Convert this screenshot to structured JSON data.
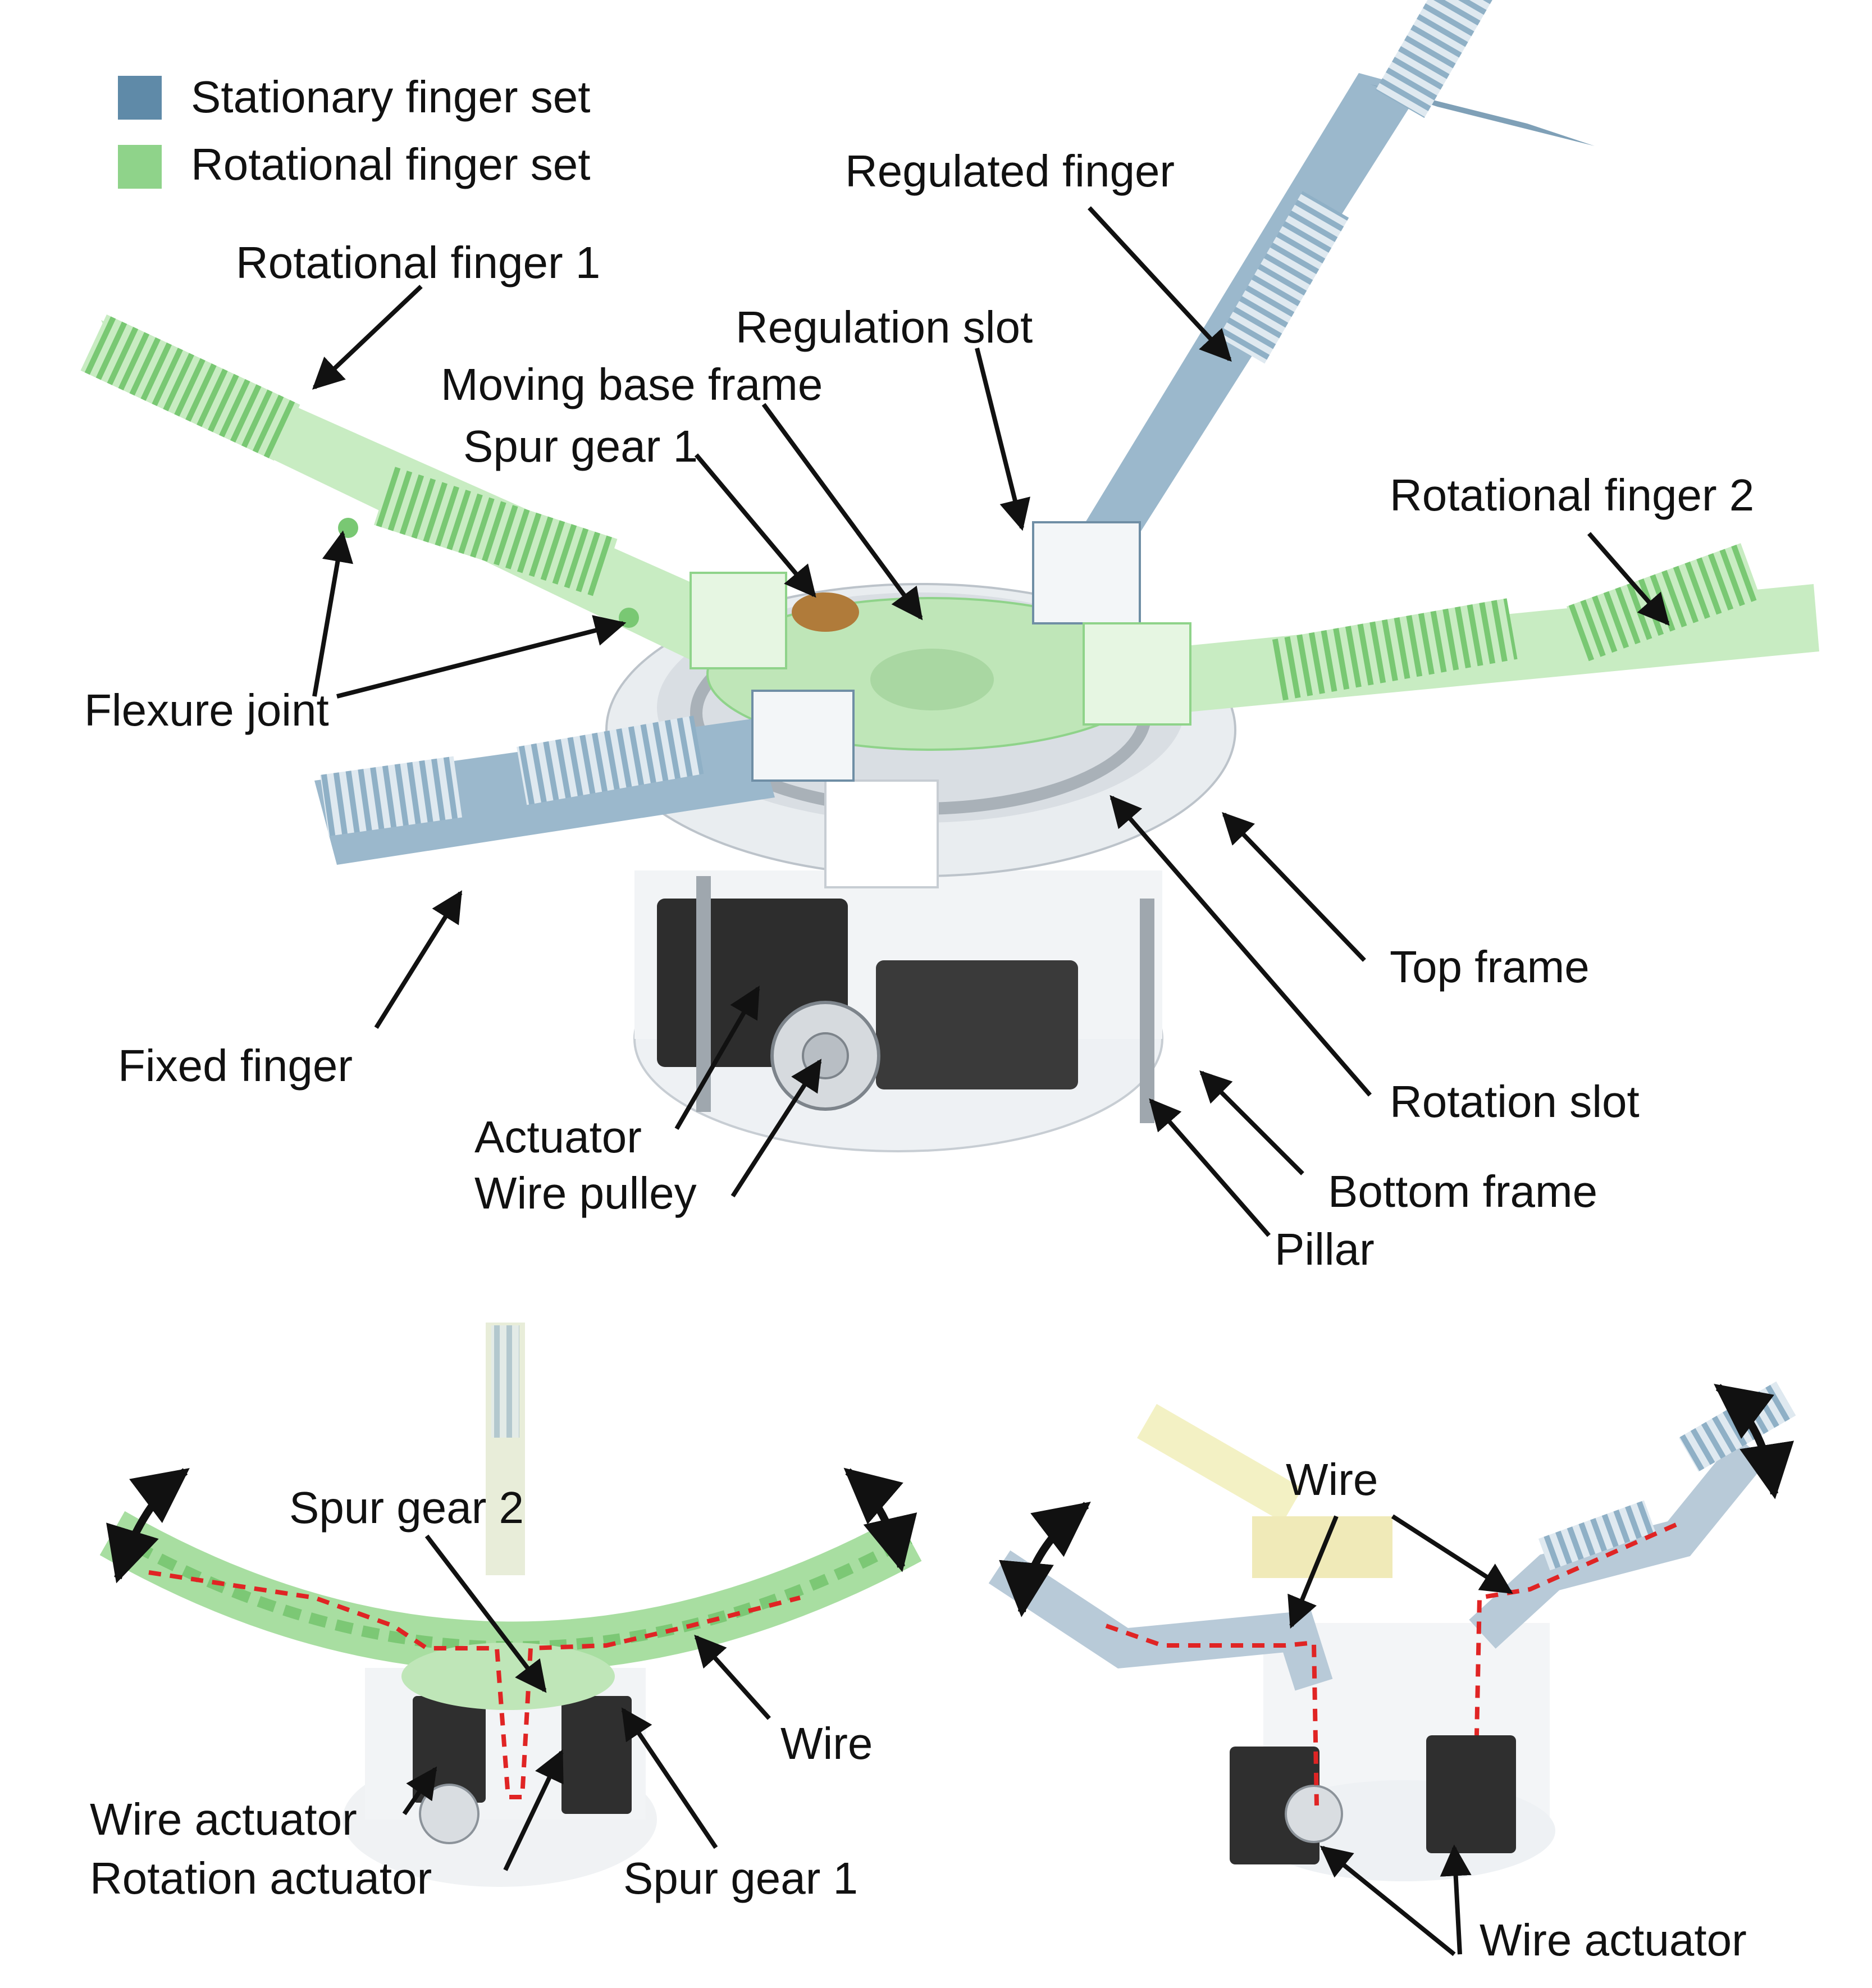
{
  "colors": {
    "stationary": "#5f8aa8",
    "rotational": "#8fd38a",
    "wire_path": "#e02424",
    "arrow": "#111111"
  },
  "legend": {
    "stationary_label": "Stationary finger set",
    "rotational_label": "Rotational finger set"
  },
  "top_view": {
    "regulated_finger": "Regulated finger",
    "rotational_finger_1": "Rotational finger 1",
    "regulation_slot": "Regulation slot",
    "moving_base_frame": "Moving base frame",
    "spur_gear_1": "Spur gear 1",
    "rotational_finger_2": "Rotational finger 2",
    "flexure_joint": "Flexure joint",
    "top_frame": "Top frame",
    "fixed_finger": "Fixed finger",
    "rotation_slot": "Rotation slot",
    "actuator": "Actuator",
    "wire_pulley": "Wire pulley",
    "bottom_frame": "Bottom frame",
    "pillar": "Pillar"
  },
  "bottom_left_view": {
    "spur_gear_2": "Spur gear 2",
    "wire": "Wire",
    "wire_actuator": "Wire actuator",
    "rotation_actuator": "Rotation actuator",
    "spur_gear_1": "Spur gear 1"
  },
  "bottom_right_view": {
    "wire": "Wire",
    "wire_actuator": "Wire actuator"
  }
}
